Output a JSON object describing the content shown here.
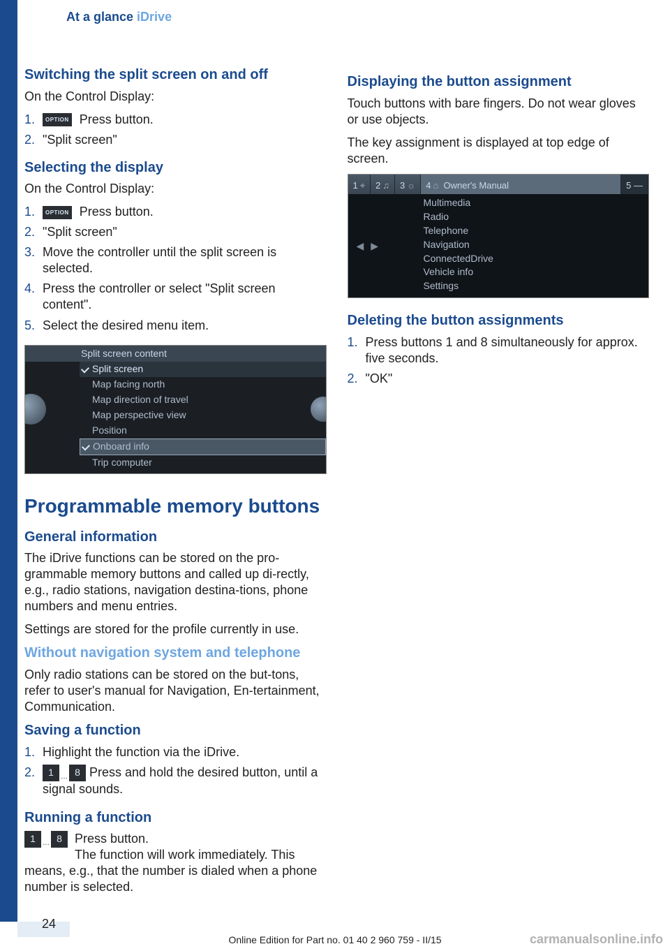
{
  "colors": {
    "brand_blue": "#1b4b8e",
    "light_blue": "#6ea6e0",
    "dark_panel": "#2a2e33",
    "fig_bg": "#1b1f24",
    "fig_header": "#3a4651",
    "text_muted": "#b0bccc"
  },
  "page": {
    "number": "24",
    "footer": "Online Edition for Part no. 01 40 2 960 759 - II/15",
    "watermark": "carmanualsonline.info"
  },
  "header": {
    "crumb1": "At a glance",
    "crumb2": "iDrive"
  },
  "section_switch": {
    "title": "Switching the split screen on and off",
    "p": "On the Control Display:",
    "steps": [
      "Press button.",
      "\"Split screen\""
    ],
    "icon_label": "OPTION"
  },
  "section_select": {
    "title": "Selecting the display",
    "p": "On the Control Display:",
    "steps": [
      "Press button.",
      "\"Split screen\"",
      "Move the controller until the split screen is selected.",
      "Press the controller or select \"Split screen content\".",
      "Select the desired menu item."
    ],
    "icon_label": "OPTION"
  },
  "figure_split": {
    "header": "Split screen content",
    "items": [
      {
        "label": "Split screen",
        "checked": true,
        "selected": false
      },
      {
        "label": "Map facing north",
        "checked": false,
        "selected": false
      },
      {
        "label": "Map direction of travel",
        "checked": false,
        "selected": false
      },
      {
        "label": "Map perspective view",
        "checked": false,
        "selected": false
      },
      {
        "label": "Position",
        "checked": false,
        "selected": false
      },
      {
        "label": "Onboard info",
        "checked": true,
        "selected": true
      },
      {
        "label": "Trip computer",
        "checked": false,
        "selected": false
      }
    ]
  },
  "section_memory": {
    "title": "Programmable memory buttons"
  },
  "section_general": {
    "title": "General information",
    "p1": "The iDrive functions can be stored on the pro‐grammable memory buttons and called up di‐rectly, e.g., radio stations, navigation destina‐tions, phone numbers and menu entries.",
    "p2": "Settings are stored for the profile currently in use."
  },
  "section_nonav": {
    "title": "Without navigation system and telephone",
    "p": "Only radio stations can be stored on the but‐tons, refer to user's manual for Navigation, En‐tertainment, Communication."
  },
  "section_save": {
    "title": "Saving a function",
    "steps": [
      "Highlight the function via the iDrive.",
      "Press and hold the desired button, until a signal sounds."
    ],
    "btn1": "1",
    "btn8": "8"
  },
  "section_run": {
    "title": "Running a function",
    "p1": "Press button.",
    "p2": "The function will work immediately. This means, e.g., that the number is dialed when a phone number is selected.",
    "btn1": "1",
    "btn8": "8"
  },
  "section_disp": {
    "title": "Displaying the button assignment",
    "p1": "Touch buttons with bare fingers. Do not wear gloves or use objects.",
    "p2": "The key assignment is displayed at top edge of screen."
  },
  "figure_om": {
    "tabs": [
      {
        "n": "1",
        "glyph": "⌖"
      },
      {
        "n": "2",
        "glyph": "♫"
      },
      {
        "n": "3",
        "glyph": "☼"
      },
      {
        "n": "4",
        "glyph": "⌂"
      }
    ],
    "active_label": "Owner's Manual",
    "tab_last": "5 —",
    "menu": [
      "Multimedia",
      "Radio",
      "Telephone",
      "Navigation",
      "ConnectedDrive",
      "Vehicle info",
      "Settings"
    ]
  },
  "section_del": {
    "title": "Deleting the button assignments",
    "steps": [
      "Press buttons 1 and 8 simultaneously for approx. five seconds.",
      "\"OK\""
    ]
  }
}
